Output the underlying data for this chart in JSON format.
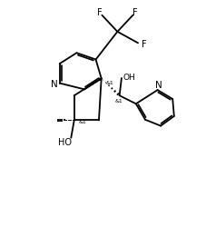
{
  "bg_color": "#ffffff",
  "line_color": "#000000",
  "line_width": 1.3,
  "font_size": 6.5,
  "figsize": [
    2.27,
    2.51
  ],
  "dpi": 100,
  "xlim": [
    0,
    10
  ],
  "ylim": [
    0,
    11
  ]
}
